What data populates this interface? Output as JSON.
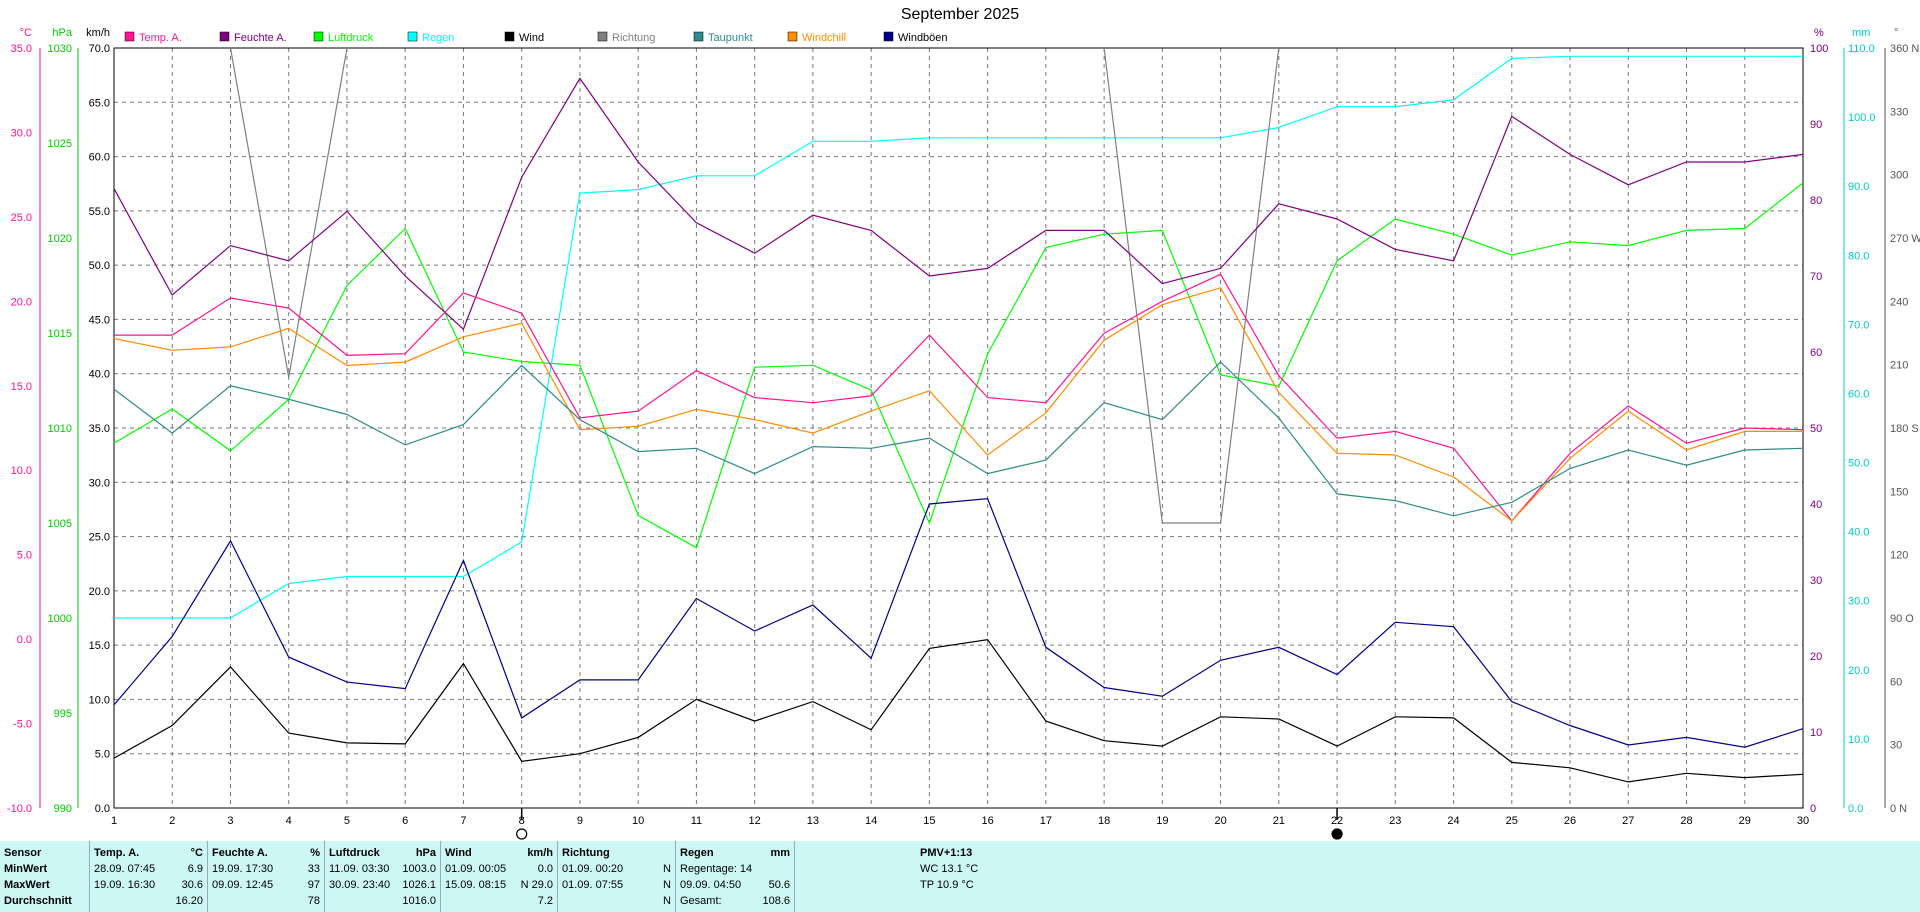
{
  "title": "September 2025",
  "legend": [
    {
      "label": "Temp. A.",
      "color": "#ff1493"
    },
    {
      "label": "Feuchte A.",
      "color": "#800080"
    },
    {
      "label": "Luftdruck",
      "color": "#00ff00"
    },
    {
      "label": "Regen",
      "color": "#00ffff"
    },
    {
      "label": "Wind",
      "color": "#000000"
    },
    {
      "label": "Richtung",
      "color": "#808080"
    },
    {
      "label": "Taupunkt",
      "color": "#2e8b8b"
    },
    {
      "label": "Windchill",
      "color": "#ff8c00"
    },
    {
      "label": "Windböen",
      "color": "#00008b"
    }
  ],
  "axis_units": {
    "temp": "°C",
    "pressure": "hPa",
    "wind": "km/h",
    "humidity": "%",
    "rain": "mm",
    "direction": "°"
  },
  "axis_ticks": {
    "temp": [
      "35.0",
      "30.0",
      "25.0",
      "20.0",
      "15.0",
      "10.0",
      "5.0",
      "0.0",
      "-5.0",
      "-10.0"
    ],
    "pressure": [
      "1030",
      "1025",
      "1020",
      "1015",
      "1010",
      "1005",
      "1000",
      "995",
      "990"
    ],
    "wind": [
      "70.0",
      "65.0",
      "60.0",
      "55.0",
      "50.0",
      "45.0",
      "40.0",
      "35.0",
      "30.0",
      "25.0",
      "20.0",
      "15.0",
      "10.0",
      "5.0",
      "0.0"
    ],
    "humidity": [
      "100",
      "90",
      "80",
      "70",
      "60",
      "50",
      "40",
      "30",
      "20",
      "10",
      "0"
    ],
    "rain": [
      "110.0",
      "100.0",
      "90.0",
      "80.0",
      "70.0",
      "60.0",
      "50.0",
      "40.0",
      "30.0",
      "20.0",
      "10.0",
      "0.0"
    ],
    "direction": [
      "360 N",
      "330",
      "300",
      "270 W",
      "240",
      "210",
      "180 S",
      "150",
      "120",
      "90 O",
      "60",
      "30",
      "0 N"
    ]
  },
  "chart_data": {
    "type": "line",
    "title": "September 2025",
    "x": [
      1,
      2,
      3,
      4,
      5,
      6,
      7,
      8,
      9,
      10,
      11,
      12,
      13,
      14,
      15,
      16,
      17,
      18,
      19,
      20,
      21,
      22,
      23,
      24,
      25,
      26,
      27,
      28,
      29,
      30
    ],
    "xlim": [
      1,
      30
    ],
    "grid": true,
    "legend_position": "top",
    "axes": {
      "temp": {
        "ylim": [
          -10,
          35
        ],
        "label": "°C"
      },
      "pressure": {
        "ylim": [
          990,
          1030
        ],
        "label": "hPa"
      },
      "wind": {
        "ylim": [
          0,
          70
        ],
        "label": "km/h"
      },
      "humidity": {
        "ylim": [
          0,
          100
        ],
        "label": "%"
      },
      "rain": {
        "ylim": [
          0,
          110
        ],
        "label": "mm"
      },
      "direction": {
        "ylim": [
          0,
          360
        ],
        "label": "°"
      }
    },
    "series": [
      {
        "name": "Regen",
        "axis": "rain",
        "color": "#00ffff",
        "values": [
          27.5,
          27.5,
          27.5,
          32.5,
          33.5,
          33.5,
          33.5,
          38.5,
          89,
          89.5,
          91.5,
          91.5,
          96.5,
          96.5,
          97,
          97,
          97,
          97,
          97,
          97,
          98.5,
          101.5,
          101.5,
          102.5,
          108.5,
          108.8,
          108.8,
          108.8,
          108.8,
          108.8
        ]
      },
      {
        "name": "Richtung",
        "axis": "direction",
        "color": "#808080",
        "values": [
          null,
          null,
          360,
          204,
          360,
          null,
          null,
          null,
          null,
          null,
          null,
          null,
          null,
          null,
          null,
          null,
          null,
          360,
          135,
          135,
          360,
          null,
          null,
          null,
          null,
          null,
          null,
          null,
          null,
          null
        ]
      },
      {
        "name": "Luftdruck",
        "axis": "pressure",
        "color": "#00ff00",
        "values": [
          1009.2,
          1011.0,
          1008.8,
          1011.5,
          1017.5,
          1020.5,
          1014.0,
          1013.5,
          1013.3,
          1005.4,
          1003.7,
          1013.2,
          1013.3,
          1012.0,
          1005.0,
          1013.9,
          1019.5,
          1020.2,
          1020.4,
          1012.8,
          1012.2,
          1018.8,
          1021.0,
          1020.2,
          1019.1,
          1019.8,
          1019.6,
          1020.4,
          1020.5,
          1022.9
        ]
      },
      {
        "name": "Feuchte A.",
        "axis": "humidity",
        "color": "#800080",
        "values": [
          81.5,
          67.5,
          74,
          72,
          78.5,
          70,
          63,
          83,
          96,
          85,
          77,
          73,
          78,
          76,
          70,
          71,
          76,
          76,
          69,
          71,
          79.5,
          77.5,
          73.5,
          72,
          91,
          86,
          82,
          85,
          85,
          86
        ]
      },
      {
        "name": "Temp. A.",
        "axis": "temp",
        "color": "#ff1493",
        "values": [
          18.0,
          18.0,
          20.2,
          19.6,
          16.8,
          16.9,
          20.5,
          19.3,
          13.1,
          13.5,
          15.9,
          14.3,
          14.0,
          14.4,
          18.0,
          14.3,
          14.0,
          18.1,
          20.0,
          21.6,
          15.6,
          11.9,
          12.3,
          11.3,
          7.0,
          11.0,
          13.8,
          11.6,
          12.5,
          12.4
        ]
      },
      {
        "name": "Windchill",
        "axis": "temp",
        "color": "#ff8c00",
        "values": [
          17.8,
          17.1,
          17.3,
          18.4,
          16.2,
          16.4,
          17.9,
          18.7,
          12.4,
          12.6,
          13.6,
          13.0,
          12.2,
          13.5,
          14.7,
          10.9,
          13.4,
          17.7,
          19.8,
          20.8,
          14.6,
          11.0,
          10.9,
          9.6,
          7.0,
          10.7,
          13.5,
          11.2,
          12.3,
          12.3
        ]
      },
      {
        "name": "Taupunkt",
        "axis": "temp",
        "color": "#2e8b8b",
        "values": [
          14.8,
          12.2,
          15.0,
          14.2,
          13.3,
          11.5,
          12.7,
          16.2,
          13.0,
          11.1,
          11.3,
          9.8,
          11.4,
          11.3,
          11.9,
          9.8,
          10.6,
          14.0,
          13.0,
          16.4,
          13.1,
          8.6,
          8.2,
          7.3,
          8.1,
          10.1,
          11.2,
          10.3,
          11.2,
          11.3
        ]
      },
      {
        "name": "Windböen",
        "axis": "wind",
        "color": "#00008b",
        "values": [
          9.5,
          15.8,
          24.6,
          13.9,
          11.6,
          11.0,
          22.8,
          8.3,
          11.8,
          11.8,
          19.3,
          16.3,
          18.7,
          13.8,
          28.0,
          28.5,
          14.8,
          11.1,
          10.3,
          13.6,
          14.8,
          12.3,
          17.1,
          16.7,
          9.8,
          7.6,
          5.8,
          6.5,
          5.6,
          7.3
        ]
      },
      {
        "name": "Wind",
        "axis": "wind",
        "color": "#000000",
        "values": [
          4.6,
          7.6,
          13.0,
          6.9,
          6.0,
          5.9,
          13.3,
          4.3,
          5.0,
          6.5,
          10.0,
          8.0,
          9.8,
          7.2,
          14.7,
          15.5,
          8.0,
          6.2,
          5.7,
          8.4,
          8.2,
          5.7,
          8.4,
          8.3,
          4.2,
          3.7,
          2.4,
          3.2,
          2.8,
          3.1
        ]
      }
    ],
    "markers": [
      {
        "x": 8,
        "symbol": "open-circle"
      },
      {
        "x": 22,
        "symbol": "filled-circle"
      }
    ]
  },
  "stats": {
    "sensor": {
      "header": "Sensor",
      "rows": [
        "MinWert",
        "MaxWert",
        "Durchschnitt"
      ]
    },
    "temp": {
      "header": "Temp. A.",
      "unit": "°C",
      "rows": [
        [
          "28.09.  07:45",
          "6.9"
        ],
        [
          "19.09.  16:30",
          "30.6"
        ],
        [
          "",
          "16.20"
        ]
      ]
    },
    "humidity": {
      "header": "Feuchte A.",
      "unit": "%",
      "rows": [
        [
          "19.09.  17:30",
          "33"
        ],
        [
          "09.09.  12:45",
          "97"
        ],
        [
          "",
          "78"
        ]
      ]
    },
    "pressure": {
      "header": "Luftdruck",
      "unit": "hPa",
      "rows": [
        [
          "11.09.  03:30",
          "1003.0"
        ],
        [
          "30.09.  23:40",
          "1026.1"
        ],
        [
          "",
          "1016.0"
        ]
      ]
    },
    "wind": {
      "header": "Wind",
      "unit": "km/h",
      "rows": [
        [
          "01.09.  00:05",
          "0.0"
        ],
        [
          "15.09.  08:15",
          "N 29.0"
        ],
        [
          "",
          "7.2"
        ]
      ]
    },
    "direction": {
      "header": "Richtung",
      "rows": [
        [
          "01.09.  00:20",
          "N"
        ],
        [
          "01.09.  07:55",
          "N"
        ],
        [
          "",
          "N"
        ]
      ]
    },
    "rain": {
      "header": "Regen",
      "unit": "mm",
      "rows": [
        [
          "Regentage: 14",
          ""
        ],
        [
          "09.09.  04:50",
          "50.6"
        ],
        [
          "Gesamt:",
          "108.6"
        ]
      ]
    },
    "pmv": {
      "header": "PMV+1:13",
      "rows": [
        "WC 13.1 °C",
        "TP 10.9 °C"
      ]
    }
  }
}
